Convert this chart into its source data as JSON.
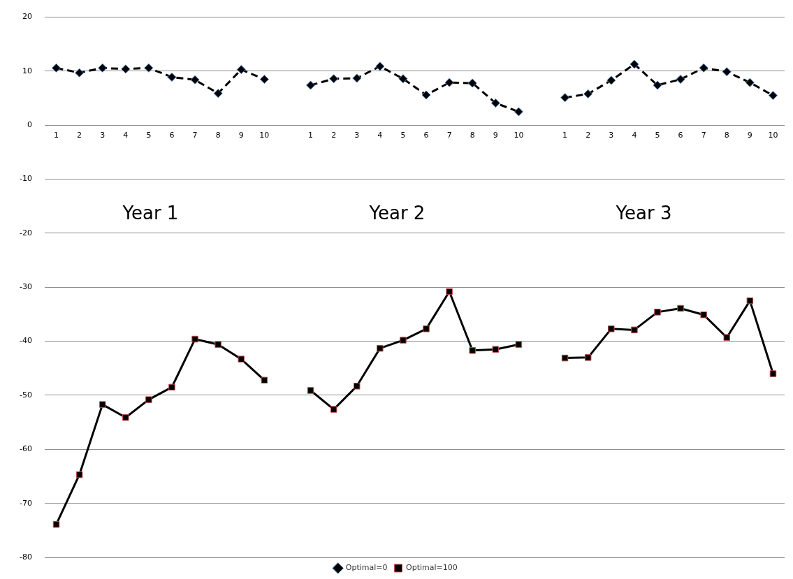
{
  "chart_data": {
    "type": "line",
    "categories": [
      "1",
      "2",
      "3",
      "4",
      "5",
      "6",
      "7",
      "8",
      "9",
      "10",
      null,
      "1",
      "2",
      "3",
      "4",
      "5",
      "6",
      "7",
      "8",
      "9",
      "10",
      null,
      "1",
      "2",
      "3",
      "4",
      "5",
      "6",
      "7",
      "8",
      "9",
      "10"
    ],
    "series": [
      {
        "name": "Optimal=0",
        "color": "#000000",
        "marker": "diamond",
        "line_style": "dashed",
        "values": [
          10.6,
          9.7,
          10.6,
          10.4,
          10.6,
          8.9,
          8.4,
          5.9,
          10.3,
          8.5,
          null,
          7.4,
          8.6,
          8.7,
          10.9,
          8.6,
          5.6,
          7.9,
          7.8,
          4.1,
          2.5,
          null,
          5.1,
          5.8,
          8.3,
          11.3,
          7.4,
          8.5,
          10.6,
          9.9,
          7.9,
          5.5
        ]
      },
      {
        "name": "Optimal=100",
        "color": "#000000",
        "marker": "square",
        "line_style": "solid",
        "values": [
          -73.9,
          -64.7,
          -51.7,
          -54.1,
          -50.8,
          -48.5,
          -39.6,
          -40.6,
          -43.3,
          -47.2,
          null,
          -49.1,
          -52.6,
          -48.3,
          -41.3,
          -39.8,
          -37.7,
          -30.8,
          -41.7,
          -41.5,
          -40.6,
          null,
          -43.1,
          -43.0,
          -37.7,
          -37.9,
          -34.6,
          -33.9,
          -35.1,
          -39.3,
          -32.5,
          -46.0
        ]
      }
    ],
    "ylim": [
      -80,
      20
    ],
    "yticks": [
      -80,
      -70,
      -60,
      -50,
      -40,
      -30,
      -20,
      -10,
      0,
      10,
      20
    ],
    "grid": "y",
    "legend": "bottom",
    "annotations": [
      "Year 1",
      "Year 2",
      "Year 3"
    ]
  }
}
